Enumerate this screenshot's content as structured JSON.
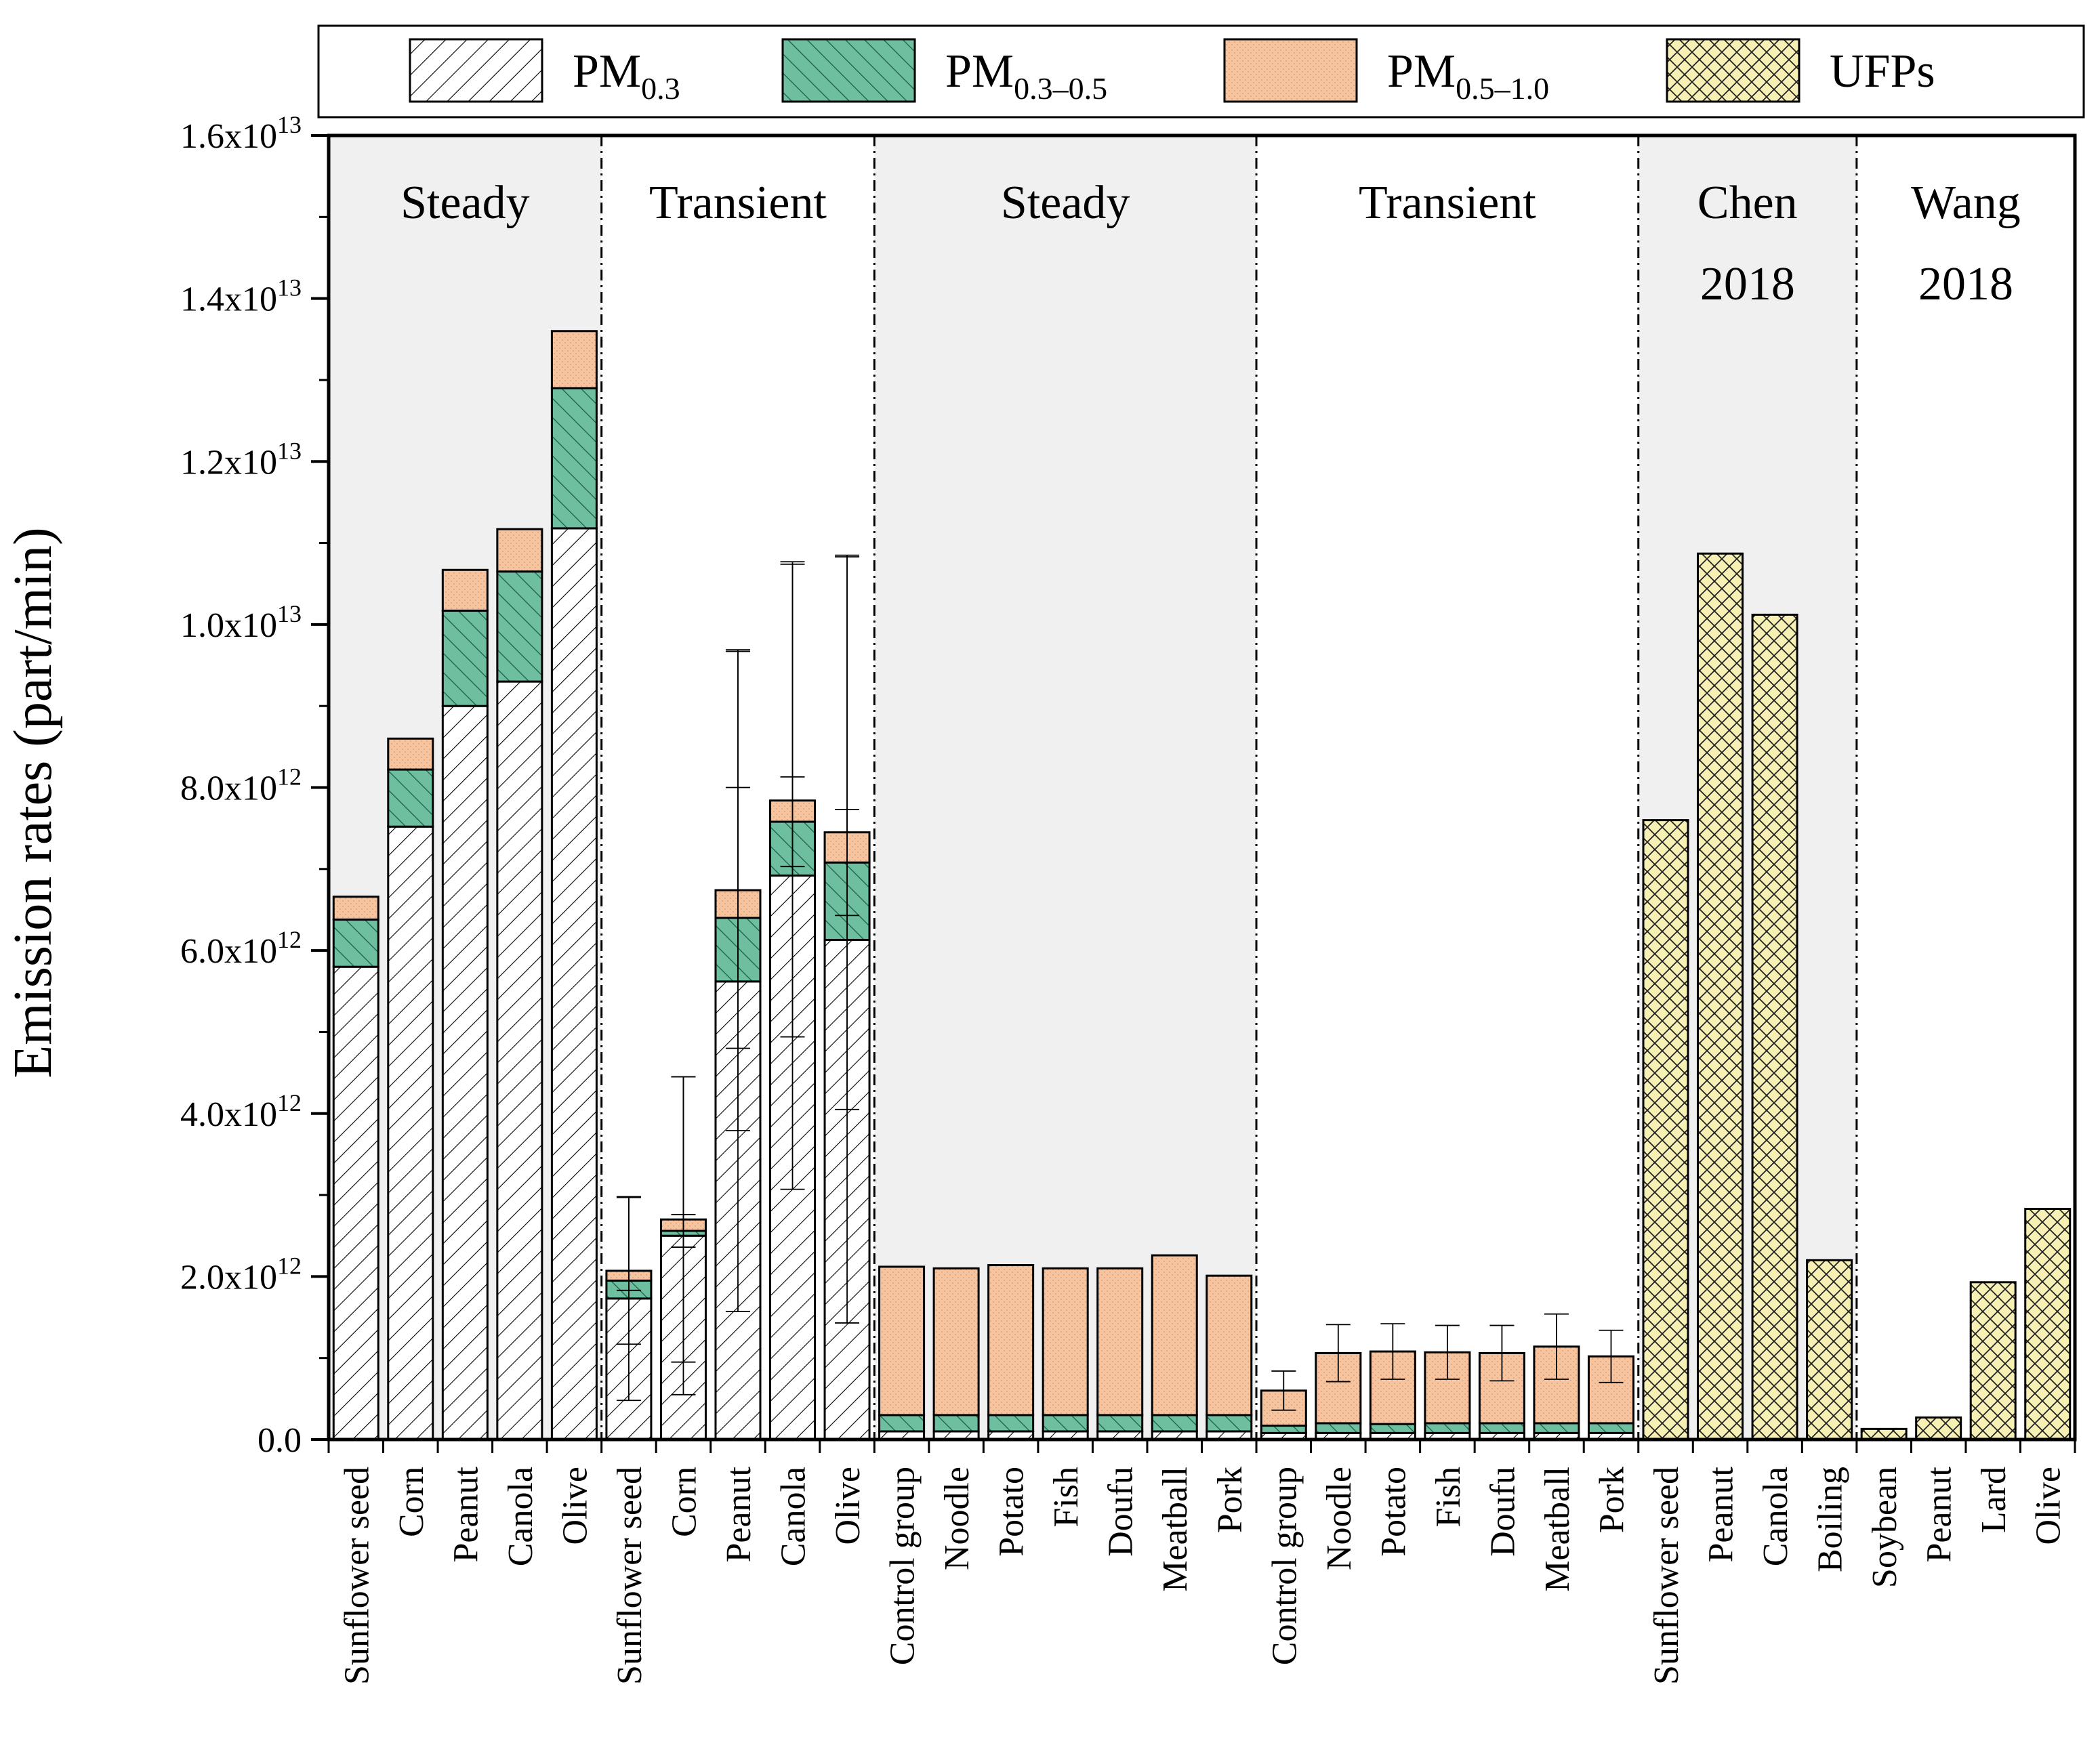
{
  "chart_data": {
    "type": "bar",
    "stacked": true,
    "ylabel": "Emission rates (part/min)",
    "ylim": [
      0,
      16000000000000.0
    ],
    "y_ticks": [
      {
        "value": 0,
        "label": "0.0"
      },
      {
        "value": 2000000000000.0,
        "label": "2.0x10",
        "exp": "12"
      },
      {
        "value": 4000000000000.0,
        "label": "4.0x10",
        "exp": "12"
      },
      {
        "value": 6000000000000.0,
        "label": "6.0x10",
        "exp": "12"
      },
      {
        "value": 8000000000000.0,
        "label": "8.0x10",
        "exp": "12"
      },
      {
        "value": 10000000000000.0,
        "label": "1.0x10",
        "exp": "13"
      },
      {
        "value": 12000000000000.0,
        "label": "1.2x10",
        "exp": "13"
      },
      {
        "value": 14000000000000.0,
        "label": "1.4x10",
        "exp": "13"
      },
      {
        "value": 16000000000000.0,
        "label": "1.6x10",
        "exp": "13"
      }
    ],
    "legend": [
      {
        "key": "pm03",
        "base": "PM",
        "sub": "0.3"
      },
      {
        "key": "pm0305",
        "base": "PM",
        "sub": "0.3–0.5"
      },
      {
        "key": "pm0510",
        "base": "PM",
        "sub": "0.5–1.0"
      },
      {
        "key": "ufp",
        "base": "UFPs",
        "sub": ""
      }
    ],
    "colors": {
      "pm03": "#ffffff",
      "pm0305": "#6dbf9f",
      "pm0510": "#f6c5a0",
      "ufp": "#f7f0b4",
      "band": "#f0f0f0"
    },
    "groups": [
      {
        "labels": [
          "Steady"
        ],
        "shaded": true
      },
      {
        "labels": [
          "Transient"
        ],
        "shaded": false
      },
      {
        "labels": [
          "Steady"
        ],
        "shaded": true
      },
      {
        "labels": [
          "Transient"
        ],
        "shaded": false
      },
      {
        "labels": [
          "Chen",
          "2018"
        ],
        "shaded": true
      },
      {
        "labels": [
          "Wang",
          "2018"
        ],
        "shaded": false
      }
    ],
    "bars": [
      {
        "label": "Sunflower seed",
        "group": 0,
        "pm03": 5800000000000.0,
        "pm0305": 580000000000.0,
        "pm0510": 280000000000.0
      },
      {
        "label": "Corn",
        "group": 0,
        "pm03": 7520000000000.0,
        "pm0305": 700000000000.0,
        "pm0510": 380000000000.0
      },
      {
        "label": "Peanut",
        "group": 0,
        "pm03": 9000000000000.0,
        "pm0305": 1170000000000.0,
        "pm0510": 500000000000.0
      },
      {
        "label": "Canola",
        "group": 0,
        "pm03": 9300000000000.0,
        "pm0305": 1350000000000.0,
        "pm0510": 520000000000.0
      },
      {
        "label": "Olive",
        "group": 0,
        "pm03": 11180000000000.0,
        "pm0305": 1720000000000.0,
        "pm0510": 700000000000.0
      },
      {
        "label": "Sunflower seed",
        "group": 1,
        "pm03": 1730000000000.0,
        "pm0305": 220000000000.0,
        "pm0510": 120000000000.0,
        "err": {
          "pm03": 1250000000000.0,
          "pm0305": 120000000000.0,
          "pm0510": 900000000000.0
        }
      },
      {
        "label": "Corn",
        "group": 1,
        "pm03": 2500000000000.0,
        "pm0305": 60000000000.0,
        "pm0510": 140000000000.0,
        "err": {
          "pm03": 1950000000000.0,
          "pm0305": 200000000000.0,
          "pm0510": 1750000000000.0
        }
      },
      {
        "label": "Peanut",
        "group": 1,
        "pm03": 5620000000000.0,
        "pm0305": 780000000000.0,
        "pm0510": 340000000000.0,
        "err": {
          "pm03": 4050000000000.0,
          "pm0305": 1600000000000.0,
          "pm0510": 2950000000000.0
        }
      },
      {
        "label": "Canola",
        "group": 1,
        "pm03": 6920000000000.0,
        "pm0305": 660000000000.0,
        "pm0510": 260000000000.0,
        "err": {
          "pm03": 3850000000000.0,
          "pm0305": 550000000000.0,
          "pm0510": 2900000000000.0
        }
      },
      {
        "label": "Olive",
        "group": 1,
        "pm03": 6130000000000.0,
        "pm0305": 950000000000.0,
        "pm0510": 370000000000.0,
        "err": {
          "pm03": 4700000000000.0,
          "pm0305": 650000000000.0,
          "pm0510": 3400000000000.0
        }
      },
      {
        "label": "Control group",
        "group": 2,
        "pm03": 100000000000.0,
        "pm0305": 200000000000.0,
        "pm0510": 1820000000000.0
      },
      {
        "label": "Noodle",
        "group": 2,
        "pm03": 100000000000.0,
        "pm0305": 200000000000.0,
        "pm0510": 1800000000000.0
      },
      {
        "label": "Potato",
        "group": 2,
        "pm03": 100000000000.0,
        "pm0305": 200000000000.0,
        "pm0510": 1840000000000.0
      },
      {
        "label": "Fish",
        "group": 2,
        "pm03": 100000000000.0,
        "pm0305": 200000000000.0,
        "pm0510": 1800000000000.0
      },
      {
        "label": "Doufu",
        "group": 2,
        "pm03": 100000000000.0,
        "pm0305": 200000000000.0,
        "pm0510": 1800000000000.0
      },
      {
        "label": "Meatball",
        "group": 2,
        "pm03": 100000000000.0,
        "pm0305": 200000000000.0,
        "pm0510": 1960000000000.0
      },
      {
        "label": "Pork",
        "group": 2,
        "pm03": 100000000000.0,
        "pm0305": 200000000000.0,
        "pm0510": 1710000000000.0
      },
      {
        "label": "Control group",
        "group": 3,
        "pm03": 80000000000.0,
        "pm0305": 90000000000.0,
        "pm0510": 430000000000.0,
        "err": {
          "pm0510": 240000000000.0
        }
      },
      {
        "label": "Noodle",
        "group": 3,
        "pm03": 80000000000.0,
        "pm0305": 120000000000.0,
        "pm0510": 860000000000.0,
        "err": {
          "pm0510": 350000000000.0
        }
      },
      {
        "label": "Potato",
        "group": 3,
        "pm03": 80000000000.0,
        "pm0305": 110000000000.0,
        "pm0510": 890000000000.0,
        "err": {
          "pm0510": 340000000000.0
        }
      },
      {
        "label": "Fish",
        "group": 3,
        "pm03": 80000000000.0,
        "pm0305": 120000000000.0,
        "pm0510": 870000000000.0,
        "err": {
          "pm0510": 330000000000.0
        }
      },
      {
        "label": "Doufu",
        "group": 3,
        "pm03": 80000000000.0,
        "pm0305": 120000000000.0,
        "pm0510": 860000000000.0,
        "err": {
          "pm0510": 340000000000.0
        }
      },
      {
        "label": "Meatball",
        "group": 3,
        "pm03": 80000000000.0,
        "pm0305": 120000000000.0,
        "pm0510": 940000000000.0,
        "err": {
          "pm0510": 400000000000.0
        }
      },
      {
        "label": "Pork",
        "group": 3,
        "pm03": 80000000000.0,
        "pm0305": 120000000000.0,
        "pm0510": 820000000000.0,
        "err": {
          "pm0510": 320000000000.0
        }
      },
      {
        "label": "Sunflower seed",
        "group": 4,
        "ufp": 7600000000000.0
      },
      {
        "label": "Peanut",
        "group": 4,
        "ufp": 10870000000000.0
      },
      {
        "label": "Canola",
        "group": 4,
        "ufp": 10120000000000.0
      },
      {
        "label": "Boiling",
        "group": 4,
        "ufp": 2200000000000.0
      },
      {
        "label": "Soybean",
        "group": 5,
        "ufp": 130000000000.0
      },
      {
        "label": "Peanut",
        "group": 5,
        "ufp": 270000000000.0
      },
      {
        "label": "Lard",
        "group": 5,
        "ufp": 1930000000000.0
      },
      {
        "label": "Olive",
        "group": 5,
        "ufp": 2830000000000.0
      }
    ]
  }
}
